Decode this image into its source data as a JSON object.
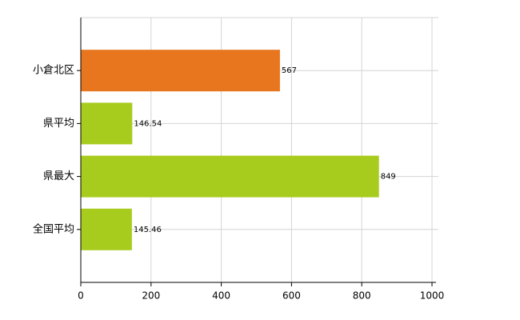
{
  "chart_data": {
    "type": "hbar",
    "categories": [
      "小倉北区",
      "県平均",
      "県最大",
      "全国平均"
    ],
    "values": [
      567,
      146.54,
      849,
      145.46
    ],
    "colors": [
      "#e8761e",
      "#a8cc1e",
      "#a8cc1e",
      "#a8cc1e"
    ],
    "xlim": [
      0,
      1000
    ],
    "xticks": [
      0,
      200,
      400,
      600,
      800,
      1000
    ],
    "grid": true
  }
}
